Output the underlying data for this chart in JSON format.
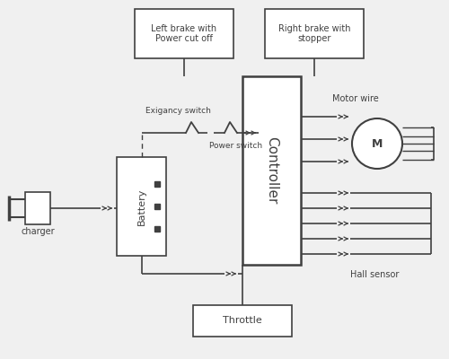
{
  "bg_color": "#f0f0f0",
  "line_color": "#404040",
  "box_color": "#ffffff",
  "box_edge": "#404040",
  "labels": {
    "charger": "charger",
    "battery": "Battery",
    "controller": "Controller",
    "throttle": "Throttle",
    "left_brake": "Left brake with\nPower cut off",
    "right_brake": "Right brake with\nstopper",
    "motor_wire": "Motor wire",
    "hall_sensor": "Hall sensor",
    "exigancy": "Exigancy switch",
    "power_switch": "Power switch",
    "motor_label": "M"
  }
}
